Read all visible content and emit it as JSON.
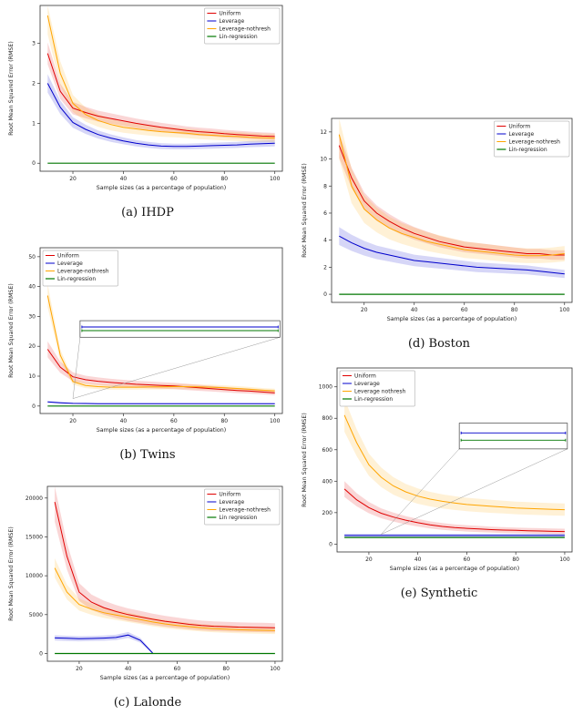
{
  "chart_data": [
    {
      "type": "line",
      "caption": "(a) IHDP",
      "xlabel": "Sample sizes (as a percentage of population)",
      "ylabel": "Root Mean Squared Error (RMSE)",
      "xlim": [
        7,
        103
      ],
      "ylim": [
        -0.2,
        3.95
      ],
      "xticks": [
        20,
        40,
        60,
        80,
        100
      ],
      "yticks": [
        0,
        1,
        2,
        3
      ],
      "legend_pos": "tr",
      "size": [
        312,
        212
      ],
      "margin": {
        "l": 38,
        "t": 4,
        "r": 8,
        "b": 26
      },
      "x": [
        10,
        15,
        20,
        25,
        30,
        35,
        40,
        45,
        50,
        55,
        60,
        65,
        70,
        75,
        80,
        85,
        90,
        95,
        100
      ],
      "series": [
        {
          "name": "Uniform",
          "color": "#e00000",
          "band_frac": 0.09,
          "band_abs": 0.03,
          "values": [
            2.75,
            1.8,
            1.38,
            1.27,
            1.18,
            1.12,
            1.06,
            1.0,
            0.95,
            0.9,
            0.86,
            0.82,
            0.79,
            0.77,
            0.74,
            0.72,
            0.7,
            0.68,
            0.67
          ]
        },
        {
          "name": "Leverage",
          "color": "#0000cc",
          "band_frac": 0.1,
          "band_abs": 0.03,
          "values": [
            2.0,
            1.4,
            1.02,
            0.85,
            0.72,
            0.63,
            0.56,
            0.5,
            0.46,
            0.43,
            0.42,
            0.42,
            0.43,
            0.44,
            0.45,
            0.46,
            0.48,
            0.49,
            0.5
          ]
        },
        {
          "name": "Leverage-nothresh",
          "color": "#ffa500",
          "band_frac": 0.12,
          "band_abs": 0.03,
          "values": [
            3.7,
            2.25,
            1.5,
            1.22,
            1.07,
            0.97,
            0.9,
            0.86,
            0.82,
            0.79,
            0.77,
            0.75,
            0.72,
            0.7,
            0.68,
            0.67,
            0.65,
            0.64,
            0.63
          ]
        },
        {
          "name": "Lin-regression",
          "color": "#007700",
          "band_frac": 0,
          "band_abs": 0,
          "width": 1.2,
          "values": [
            0,
            0,
            0,
            0,
            0,
            0,
            0,
            0,
            0,
            0,
            0,
            0,
            0,
            0,
            0,
            0,
            0,
            0,
            0
          ]
        }
      ]
    },
    {
      "type": "line",
      "caption": "(b) Twins",
      "xlabel": "Sample sizes (as a percentage of population)",
      "ylabel": "Root Mean Squared Error (RMSE)",
      "xlim": [
        7,
        103
      ],
      "ylim": [
        -2.5,
        53
      ],
      "xticks": [
        20,
        40,
        60,
        80,
        100
      ],
      "yticks": [
        0,
        10,
        20,
        30,
        40,
        50
      ],
      "legend_pos": "tl",
      "size": [
        312,
        212
      ],
      "margin": {
        "l": 38,
        "t": 4,
        "r": 8,
        "b": 26
      },
      "x": [
        10,
        15,
        20,
        25,
        30,
        35,
        40,
        45,
        50,
        55,
        60,
        65,
        70,
        75,
        80,
        85,
        90,
        95,
        100
      ],
      "series": [
        {
          "name": "Uniform",
          "color": "#e00000",
          "band_frac": 0.13,
          "band_abs": 0.2,
          "values": [
            19,
            13,
            9.8,
            8.8,
            8.3,
            7.9,
            7.6,
            7.3,
            7.1,
            6.9,
            6.7,
            6.4,
            6.1,
            5.8,
            5.5,
            5.2,
            5.0,
            4.7,
            4.4
          ]
        },
        {
          "name": "Leverage",
          "color": "#0000cc",
          "band_frac": 0.15,
          "band_abs": 0.1,
          "values": [
            1.4,
            1.1,
            0.9,
            0.85,
            0.8,
            0.8,
            0.8,
            0.8,
            0.8,
            0.8,
            0.8,
            0.8,
            0.8,
            0.8,
            0.8,
            0.8,
            0.8,
            0.8,
            0.8
          ]
        },
        {
          "name": "Leverage-nothresh",
          "color": "#ffa500",
          "band_frac": 0.1,
          "band_abs": 0.2,
          "values": [
            37,
            17,
            8.2,
            6.9,
            6.5,
            6.3,
            6.3,
            6.3,
            6.4,
            6.4,
            6.5,
            6.5,
            6.4,
            6.3,
            6.1,
            5.9,
            5.6,
            5.3,
            5.1
          ]
        },
        {
          "name": "Lin-regression",
          "color": "#007700",
          "band_frac": 0,
          "band_abs": 0,
          "width": 1.2,
          "values": [
            0,
            0,
            0,
            0,
            0,
            0,
            0,
            0,
            0,
            0,
            0,
            0,
            0,
            0,
            0,
            0,
            0,
            0,
            0
          ]
        }
      ],
      "inset": {
        "fx": 0.165,
        "fy": 0.44,
        "fw": 0.825,
        "fh": 0.1,
        "lines": [
          {
            "color": "#0000cc",
            "fy": 0.38
          },
          {
            "color": "#007700",
            "fy": 0.6
          }
        ],
        "connectors": [
          {
            "from": [
              20,
              2.5
            ],
            "to": "bl"
          },
          {
            "from": [
              20,
              2.5
            ],
            "to": "br"
          }
        ]
      }
    },
    {
      "type": "line",
      "caption": "(c) Lalonde",
      "xlabel": "Sample sizes (as a percentage of population)",
      "ylabel": "Root Mean Squared Error (RMSE)",
      "xlim": [
        7,
        103
      ],
      "ylim": [
        -1000,
        21500
      ],
      "xticks": [
        20,
        40,
        60,
        80,
        100
      ],
      "yticks": [
        0,
        5000,
        10000,
        15000,
        20000
      ],
      "legend_pos": "tr",
      "size": [
        312,
        222
      ],
      "margin": {
        "l": 46,
        "t": 4,
        "r": 8,
        "b": 26
      },
      "x": [
        10,
        15,
        20,
        25,
        30,
        35,
        40,
        45,
        50,
        55,
        60,
        65,
        70,
        75,
        80,
        85,
        90,
        95,
        100
      ],
      "series": [
        {
          "name": "Uniform",
          "color": "#e00000",
          "band_frac": 0.12,
          "band_abs": 200,
          "values": [
            19500,
            12500,
            7900,
            6600,
            5900,
            5400,
            5000,
            4700,
            4400,
            4150,
            3950,
            3750,
            3600,
            3500,
            3450,
            3400,
            3370,
            3340,
            3300
          ]
        },
        {
          "name": "Leverage",
          "color": "#0000cc",
          "band_frac": 0.12,
          "band_abs": 100,
          "values": [
            2000,
            1950,
            1900,
            1930,
            1980,
            2060,
            2380,
            1700,
            60,
            null,
            null,
            null,
            null,
            null,
            null,
            null,
            null,
            null,
            null
          ]
        },
        {
          "name": "Leverage-nothresh",
          "color": "#ffa500",
          "band_frac": 0.1,
          "band_abs": 150,
          "values": [
            11000,
            7900,
            6300,
            5700,
            5250,
            4950,
            4650,
            4350,
            4050,
            3800,
            3600,
            3450,
            3300,
            3200,
            3120,
            3060,
            3010,
            2980,
            2950
          ]
        },
        {
          "name": "Lin regression",
          "color": "#007700",
          "band_frac": 0,
          "band_abs": 0,
          "width": 1.2,
          "values": [
            0,
            0,
            0,
            0,
            0,
            0,
            0,
            0,
            0,
            0,
            0,
            0,
            0,
            0,
            0,
            0,
            0,
            0,
            0
          ]
        }
      ]
    },
    {
      "type": "line",
      "caption": "(d) Boston",
      "xlabel": "Sample sizes (as a percentage of population)",
      "ylabel": "Root Mean Squared Error (RMSE)",
      "xlim": [
        7,
        103
      ],
      "ylim": [
        -0.6,
        13
      ],
      "xticks": [
        20,
        40,
        60,
        80,
        100
      ],
      "yticks": [
        0,
        2,
        4,
        6,
        8,
        10,
        12
      ],
      "legend_pos": "tr",
      "size": [
        308,
        232
      ],
      "margin": {
        "l": 36,
        "t": 4,
        "r": 8,
        "b": 26
      },
      "x": [
        10,
        15,
        20,
        25,
        30,
        35,
        40,
        45,
        50,
        55,
        60,
        65,
        70,
        75,
        80,
        85,
        90,
        95,
        100
      ],
      "series": [
        {
          "name": "Uniform",
          "color": "#e00000",
          "band_frac": 0.07,
          "band_abs": 0.15,
          "values": [
            11.0,
            8.6,
            6.9,
            6.0,
            5.4,
            4.9,
            4.5,
            4.2,
            3.9,
            3.7,
            3.5,
            3.4,
            3.3,
            3.2,
            3.1,
            3.0,
            3.0,
            2.9,
            2.9
          ]
        },
        {
          "name": "Leverage",
          "color": "#0000cc",
          "band_frac": 0.13,
          "band_abs": 0.1,
          "values": [
            4.3,
            3.8,
            3.4,
            3.1,
            2.9,
            2.7,
            2.5,
            2.4,
            2.3,
            2.2,
            2.1,
            2.0,
            1.95,
            1.9,
            1.85,
            1.8,
            1.7,
            1.6,
            1.5
          ]
        },
        {
          "name": "Leverage-nothresh",
          "color": "#ffa500",
          "band_frac": 0.14,
          "band_abs": 0.15,
          "values": [
            11.8,
            8.0,
            6.3,
            5.5,
            4.9,
            4.5,
            4.2,
            3.9,
            3.7,
            3.5,
            3.3,
            3.2,
            3.1,
            3.0,
            2.9,
            2.85,
            2.85,
            2.9,
            3.0
          ]
        },
        {
          "name": "Lin-regression",
          "color": "#007700",
          "band_frac": 0,
          "band_abs": 0,
          "width": 1.2,
          "values": [
            0,
            0,
            0,
            0,
            0,
            0,
            0,
            0,
            0,
            0,
            0,
            0,
            0,
            0,
            0,
            0,
            0,
            0,
            0
          ]
        }
      ]
    },
    {
      "type": "line",
      "caption": "(e) Synthetic",
      "xlabel": "Sample sizes (as a percentage of population)",
      "ylabel": "Root Mean Squared Error (RMSE)",
      "xlim": [
        7,
        103
      ],
      "ylim": [
        -50,
        1120
      ],
      "xticks": [
        20,
        40,
        60,
        80,
        100
      ],
      "yticks": [
        0,
        200,
        400,
        600,
        800,
        1000
      ],
      "legend_pos": "tl",
      "size": [
        308,
        232
      ],
      "margin": {
        "l": 42,
        "t": 4,
        "r": 8,
        "b": 26
      },
      "x": [
        10,
        15,
        20,
        25,
        30,
        35,
        40,
        45,
        50,
        55,
        60,
        65,
        70,
        75,
        80,
        85,
        90,
        95,
        100
      ],
      "series": [
        {
          "name": "Uniform",
          "color": "#e00000",
          "band_frac": 0.12,
          "band_abs": 8,
          "values": [
            350,
            282,
            232,
            196,
            172,
            152,
            136,
            122,
            112,
            105,
            100,
            96,
            92,
            89,
            87,
            85,
            83,
            81,
            80
          ]
        },
        {
          "name": "Leverage",
          "color": "#0000cc",
          "band_frac": 0.12,
          "band_abs": 4,
          "values": [
            55,
            55,
            55,
            55,
            55,
            55,
            55,
            55,
            55,
            55,
            55,
            55,
            55,
            55,
            55,
            55,
            55,
            55,
            55
          ]
        },
        {
          "name": "Leverage nothresh",
          "color": "#ffa500",
          "band_frac": 0.11,
          "band_abs": 15,
          "values": [
            820,
            645,
            505,
            425,
            370,
            332,
            305,
            286,
            272,
            261,
            252,
            246,
            240,
            235,
            230,
            227,
            224,
            221,
            219
          ]
        },
        {
          "name": "Lin-regression",
          "color": "#007700",
          "band_frac": 0,
          "band_abs": 0,
          "width": 1.2,
          "values": [
            42,
            42,
            42,
            42,
            42,
            42,
            42,
            42,
            42,
            42,
            42,
            42,
            42,
            42,
            42,
            42,
            42,
            42,
            42
          ]
        }
      ],
      "inset": {
        "fx": 0.52,
        "fy": 0.3,
        "fw": 0.46,
        "fh": 0.14,
        "lines": [
          {
            "color": "#0000cc",
            "fy": 0.38
          },
          {
            "color": "#007700",
            "fy": 0.66
          }
        ],
        "connectors": [
          {
            "from": [
              25,
              62
            ],
            "to": "bl"
          },
          {
            "from": [
              25,
              62
            ],
            "to": "br"
          }
        ]
      }
    }
  ]
}
